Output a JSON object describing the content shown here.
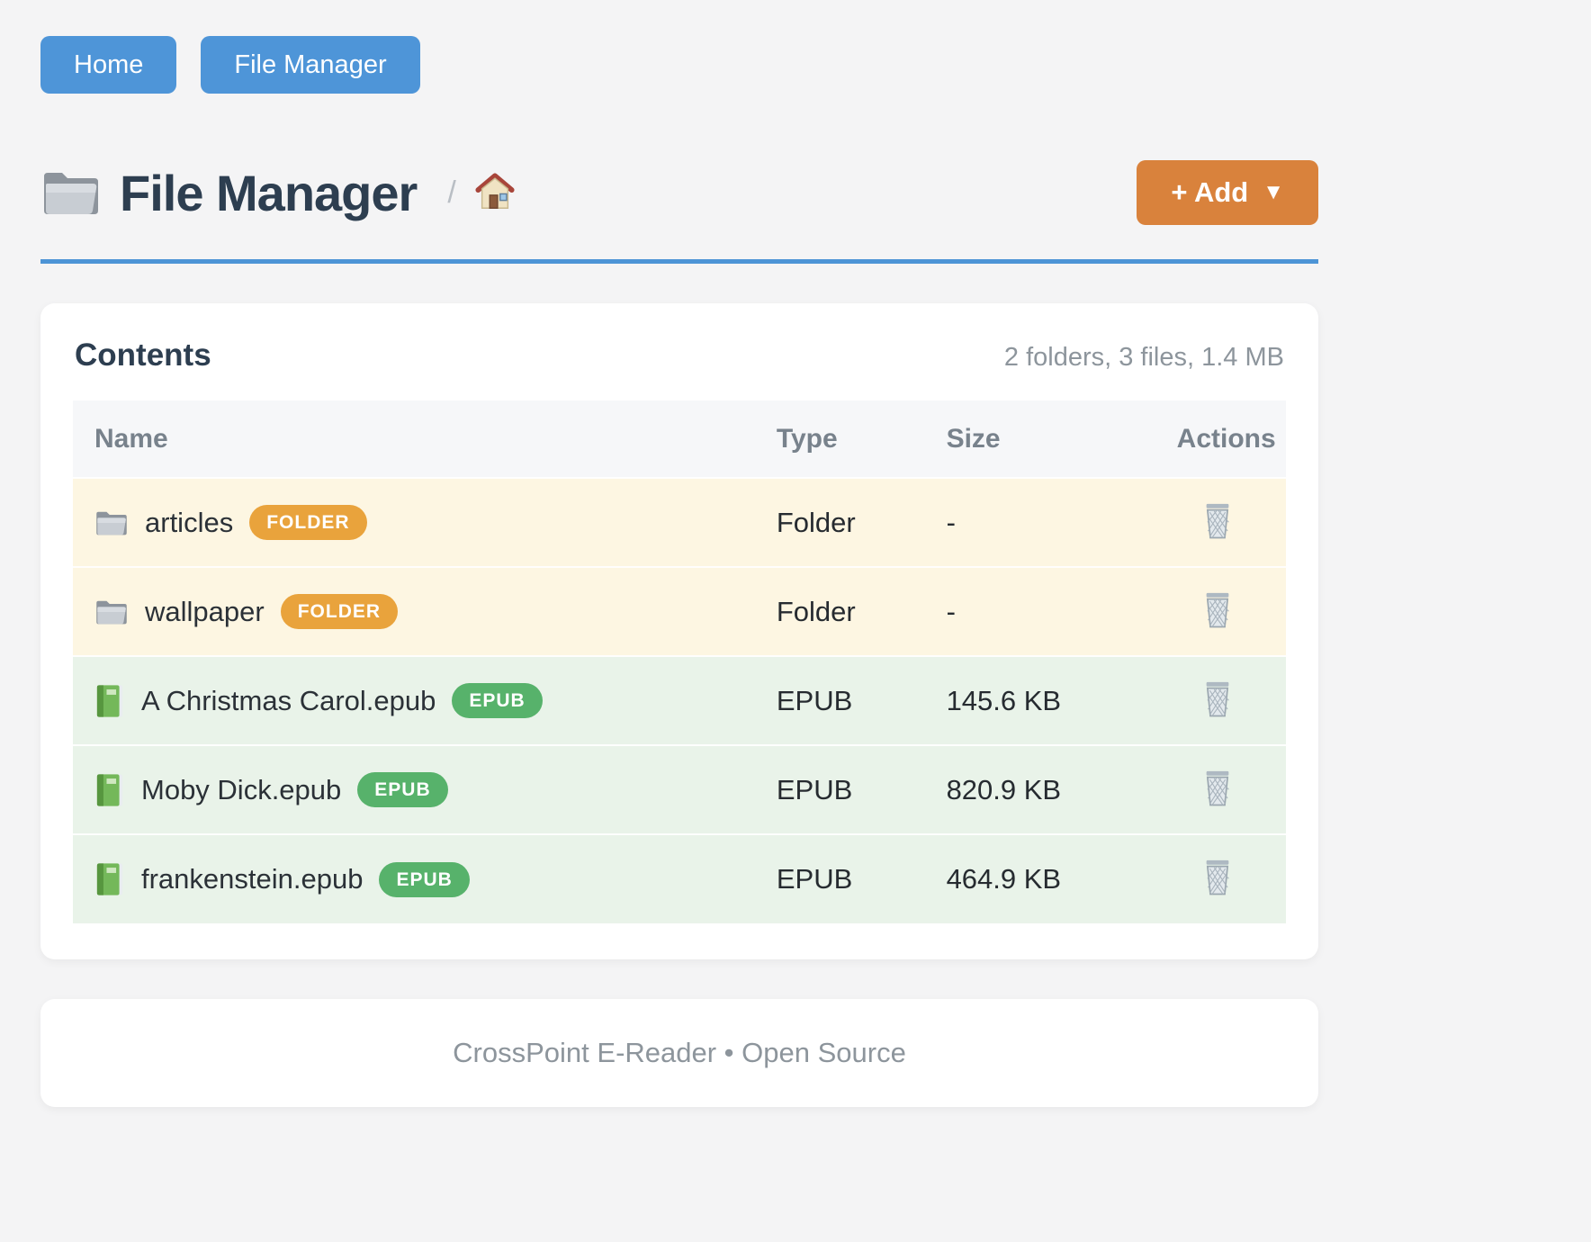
{
  "nav": {
    "buttons": [
      {
        "label": "Home"
      },
      {
        "label": "File Manager"
      }
    ]
  },
  "header": {
    "title": "File Manager",
    "title_icon": "folder-icon",
    "breadcrumb_separator": "/",
    "breadcrumb_root_icon": "home-icon",
    "add_button": {
      "label": "+ Add",
      "caret": "▼"
    }
  },
  "contents_card": {
    "title": "Contents",
    "summary": "2 folders, 3 files, 1.4 MB",
    "table": {
      "columns": [
        "Name",
        "Type",
        "Size",
        "Actions"
      ],
      "rows": [
        {
          "name": "articles",
          "badge": "FOLDER",
          "type": "Folder",
          "size": "-",
          "kind": "folder",
          "icon": "folder-icon",
          "action_icon": "trash-icon"
        },
        {
          "name": "wallpaper",
          "badge": "FOLDER",
          "type": "Folder",
          "size": "-",
          "kind": "folder",
          "icon": "folder-icon",
          "action_icon": "trash-icon"
        },
        {
          "name": "A Christmas Carol.epub",
          "badge": "EPUB",
          "type": "EPUB",
          "size": "145.6 KB",
          "kind": "epub",
          "icon": "book-icon",
          "action_icon": "trash-icon"
        },
        {
          "name": "Moby Dick.epub",
          "badge": "EPUB",
          "type": "EPUB",
          "size": "820.9 KB",
          "kind": "epub",
          "icon": "book-icon",
          "action_icon": "trash-icon"
        },
        {
          "name": "frankenstein.epub",
          "badge": "EPUB",
          "type": "EPUB",
          "size": "464.9 KB",
          "kind": "epub",
          "icon": "book-icon",
          "action_icon": "trash-icon"
        }
      ]
    }
  },
  "footer": {
    "text": "CrossPoint E-Reader • Open Source"
  },
  "colors": {
    "page_bg": "#f4f4f5",
    "nav_button": "#4e95d8",
    "add_button": "#d9823c",
    "divider": "#4d94d6",
    "title_text": "#2d3e50",
    "muted_text": "#8d959c",
    "folder_badge": "#e9a33c",
    "epub_badge": "#57b26b",
    "folder_row_bg": "#fdf6e2",
    "epub_row_bg": "#e9f3e9"
  }
}
